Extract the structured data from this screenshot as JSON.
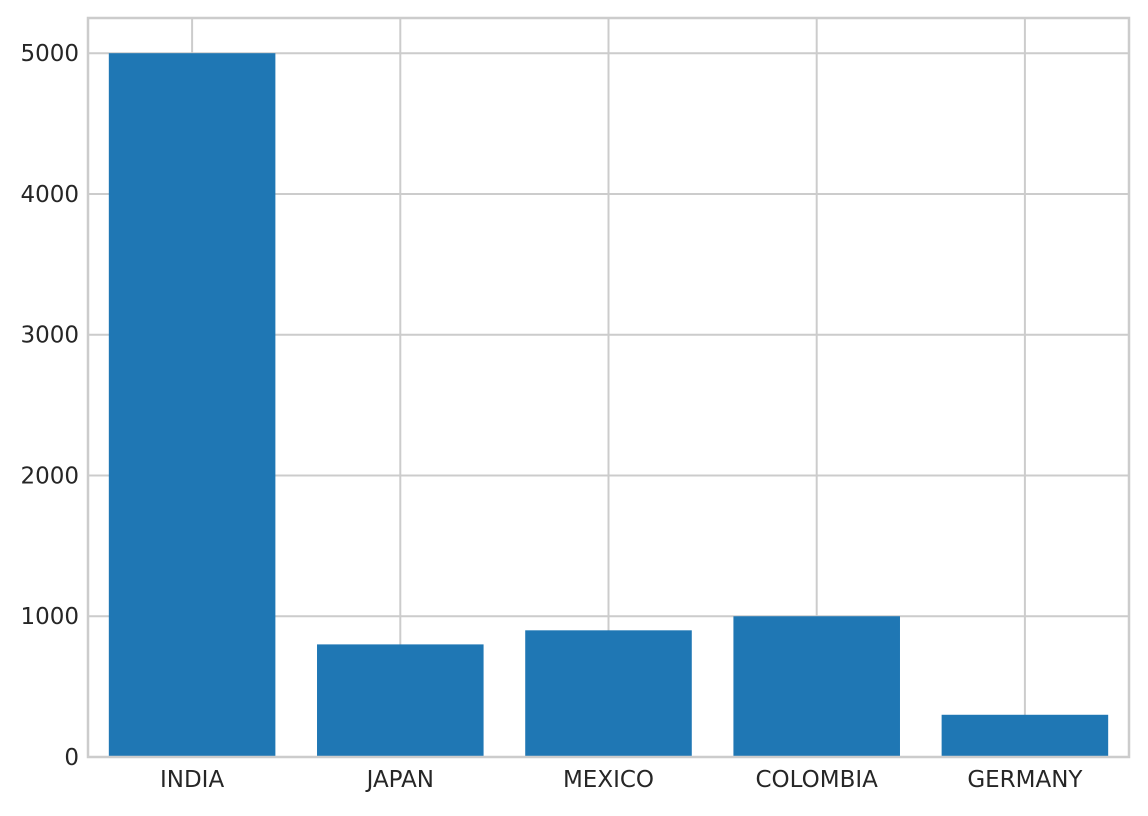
{
  "chart_data": {
    "type": "bar",
    "title": "",
    "xlabel": "",
    "ylabel": "",
    "categories": [
      "INDIA",
      "JAPAN",
      "MEXICO",
      "COLOMBIA",
      "GERMANY"
    ],
    "values": [
      5000,
      800,
      900,
      1000,
      300
    ],
    "ylim": [
      0,
      5250
    ],
    "yticks": [
      0,
      1000,
      2000,
      3000,
      4000,
      5000
    ],
    "ytick_labels": [
      "0",
      "1000",
      "2000",
      "3000",
      "4000",
      "5000"
    ],
    "grid": true,
    "legend": "none"
  },
  "colors": {
    "bar": "#1f77b4",
    "grid": "#cccccc",
    "spine": "#cccccc",
    "text": "#262626",
    "background": "#ffffff"
  }
}
